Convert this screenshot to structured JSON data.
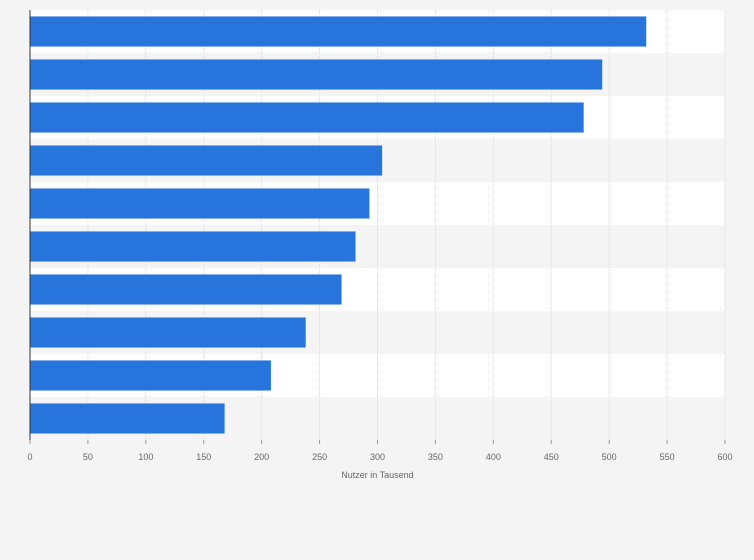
{
  "chart_data": {
    "type": "bar",
    "orientation": "horizontal",
    "title": "",
    "xlabel": "Nutzer in Tausend",
    "ylabel": "",
    "xlim": [
      0,
      600
    ],
    "x_ticks": [
      "0",
      "50",
      "100",
      "150",
      "200",
      "250",
      "300",
      "350",
      "400",
      "450",
      "500",
      "550",
      "600"
    ],
    "categories": [
      "",
      "",
      "",
      "",
      "",
      "",
      "",
      "",
      "",
      ""
    ],
    "values": [
      532,
      494,
      478,
      304,
      293,
      281,
      269,
      238,
      208,
      168
    ],
    "grid": true,
    "bar_color": "#2775dc",
    "band_colors": [
      "#ffffff",
      "#f4f4f4"
    ]
  }
}
